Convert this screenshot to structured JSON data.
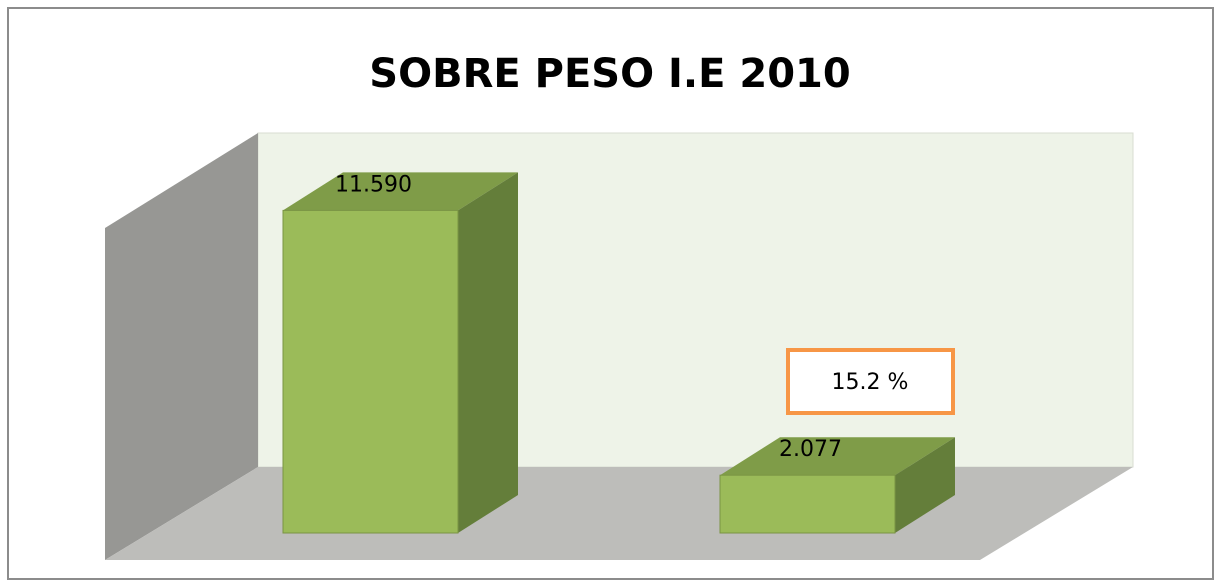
{
  "chart_data": {
    "type": "bar3d",
    "title": "SOBRE PESO  I.E 2010",
    "categories": [
      null,
      null
    ],
    "values": [
      11590,
      2077
    ],
    "value_labels": [
      "11.590",
      "2.077"
    ],
    "color": "#9bbb59",
    "ylim": [
      0,
      12000
    ],
    "annotation": "15.2 %"
  }
}
